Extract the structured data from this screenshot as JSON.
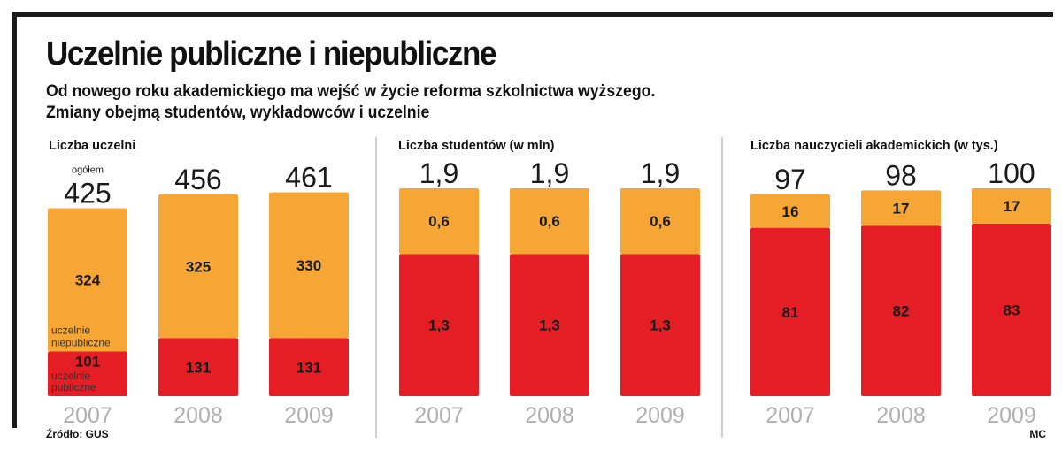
{
  "header": {
    "title": "Uczelnie publiczne i niepubliczne",
    "subtitle_line1": "Od nowego roku akademickiego ma wejść w życie reforma szkolnictwa wyższego.",
    "subtitle_line2": "Zmiany obejmą studentów, wykładowców i uczelnie"
  },
  "footer": {
    "source": "Źródło: GUS",
    "author": "MC"
  },
  "colors": {
    "orange": "#f5a634",
    "red": "#e51e25"
  },
  "chart_data": [
    {
      "type": "bar",
      "stacked": true,
      "title": "Liczba uczelni",
      "categories": [
        "2007",
        "2008",
        "2009"
      ],
      "total_labels": [
        "425",
        "456",
        "461"
      ],
      "totals": [
        425,
        456,
        461
      ],
      "first_total_note": "ogółem",
      "series": [
        {
          "name": "uczelnie publiczne",
          "color": "#e51e25",
          "values": [
            101,
            131,
            131
          ],
          "labels": [
            "101",
            "131",
            "131"
          ]
        },
        {
          "name": "uczelnie niepubliczne",
          "color": "#f5a634",
          "values": [
            324,
            325,
            330
          ],
          "labels": [
            "324",
            "325",
            "330"
          ]
        }
      ],
      "ylim": [
        0,
        470
      ]
    },
    {
      "type": "bar",
      "stacked": true,
      "title": "Liczba studentów (w mln)",
      "categories": [
        "2007",
        "2008",
        "2009"
      ],
      "total_labels": [
        "1,9",
        "1,9",
        "1,9"
      ],
      "totals": [
        1.9,
        1.9,
        1.9
      ],
      "series": [
        {
          "name": "",
          "color": "#e51e25",
          "values": [
            1.3,
            1.3,
            1.3
          ],
          "labels": [
            "1,3",
            "1,3",
            "1,3"
          ]
        },
        {
          "name": "",
          "color": "#f5a634",
          "values": [
            0.6,
            0.6,
            0.6
          ],
          "labels": [
            "0,6",
            "0,6",
            "0,6"
          ]
        }
      ],
      "ylim": [
        0,
        1.9
      ]
    },
    {
      "type": "bar",
      "stacked": true,
      "title": "Liczba nauczycieli akademickich (w tys.)",
      "categories": [
        "2007",
        "2008",
        "2009"
      ],
      "total_labels": [
        "97",
        "98",
        "100"
      ],
      "totals": [
        97,
        98,
        100
      ],
      "series": [
        {
          "name": "",
          "color": "#e51e25",
          "values": [
            81,
            82,
            83
          ],
          "labels": [
            "81",
            "82",
            "83"
          ]
        },
        {
          "name": "",
          "color": "#f5a634",
          "values": [
            16,
            17,
            17
          ],
          "labels": [
            "16",
            "17",
            "17"
          ]
        }
      ],
      "ylim": [
        0,
        100
      ]
    }
  ]
}
